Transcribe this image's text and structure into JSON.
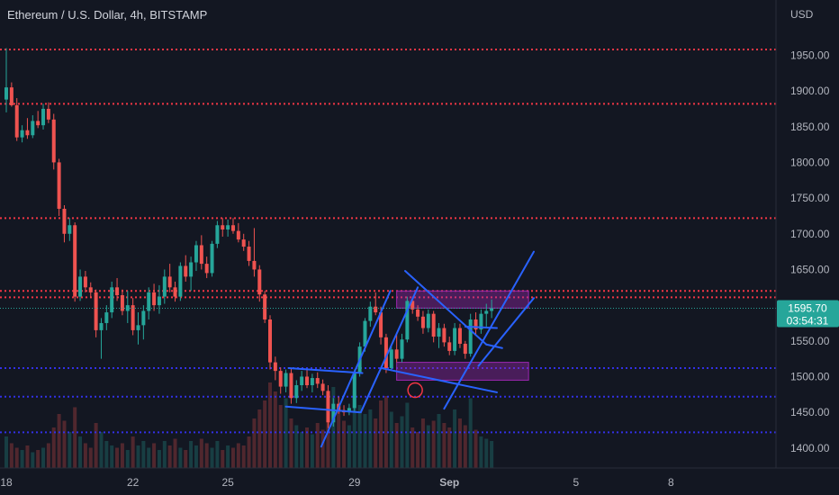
{
  "chart_data": {
    "type": "candlestick",
    "title": "Ethereum / U.S. Dollar, 4h, BITSTAMP",
    "yaxis_unit": "USD",
    "ylim": [
      1370,
      2005
    ],
    "y_ticks": [
      1950,
      1900,
      1850,
      1800,
      1750,
      1700,
      1650,
      1550,
      1500,
      1450,
      1400
    ],
    "y_tick_labels": [
      "1950.00",
      "1900.00",
      "1850.00",
      "1800.00",
      "1750.00",
      "1700.00",
      "1650.00",
      "1550.00",
      "1500.00",
      "1450.00",
      "1400.00"
    ],
    "x_labels": [
      "18",
      "22",
      "25",
      "29",
      "Sep",
      "5",
      "8"
    ],
    "x_label_bars": [
      0,
      24,
      42,
      66,
      84,
      108,
      126
    ],
    "current_price": {
      "label": "1595.70",
      "countdown": "03:54:31",
      "value": 1595.7
    },
    "colors": {
      "up": "#26a69a",
      "down": "#ef5350",
      "background": "#131722",
      "trendline": "#2962ff",
      "resistance": "#f23645",
      "support": "#3330e6",
      "zone": "#9c27b0"
    },
    "candles": [
      {
        "o": 1888,
        "h": 1960,
        "l": 1870,
        "c": 1905
      },
      {
        "o": 1905,
        "h": 1912,
        "l": 1878,
        "c": 1880
      },
      {
        "o": 1880,
        "h": 1890,
        "l": 1830,
        "c": 1835
      },
      {
        "o": 1835,
        "h": 1852,
        "l": 1828,
        "c": 1845
      },
      {
        "o": 1845,
        "h": 1862,
        "l": 1833,
        "c": 1838
      },
      {
        "o": 1838,
        "h": 1866,
        "l": 1834,
        "c": 1858
      },
      {
        "o": 1858,
        "h": 1872,
        "l": 1848,
        "c": 1852
      },
      {
        "o": 1852,
        "h": 1882,
        "l": 1846,
        "c": 1875
      },
      {
        "o": 1875,
        "h": 1884,
        "l": 1855,
        "c": 1860
      },
      {
        "o": 1860,
        "h": 1868,
        "l": 1790,
        "c": 1800
      },
      {
        "o": 1800,
        "h": 1805,
        "l": 1725,
        "c": 1735
      },
      {
        "o": 1735,
        "h": 1740,
        "l": 1688,
        "c": 1700
      },
      {
        "o": 1700,
        "h": 1722,
        "l": 1690,
        "c": 1712
      },
      {
        "o": 1712,
        "h": 1716,
        "l": 1605,
        "c": 1612
      },
      {
        "o": 1612,
        "h": 1650,
        "l": 1606,
        "c": 1640
      },
      {
        "o": 1640,
        "h": 1648,
        "l": 1618,
        "c": 1625
      },
      {
        "o": 1625,
        "h": 1632,
        "l": 1610,
        "c": 1618
      },
      {
        "o": 1618,
        "h": 1622,
        "l": 1555,
        "c": 1565
      },
      {
        "o": 1565,
        "h": 1582,
        "l": 1525,
        "c": 1575
      },
      {
        "o": 1575,
        "h": 1600,
        "l": 1565,
        "c": 1590
      },
      {
        "o": 1590,
        "h": 1633,
        "l": 1582,
        "c": 1625
      },
      {
        "o": 1625,
        "h": 1638,
        "l": 1606,
        "c": 1614
      },
      {
        "o": 1614,
        "h": 1622,
        "l": 1586,
        "c": 1592
      },
      {
        "o": 1592,
        "h": 1620,
        "l": 1575,
        "c": 1600
      },
      {
        "o": 1600,
        "h": 1610,
        "l": 1558,
        "c": 1565
      },
      {
        "o": 1565,
        "h": 1590,
        "l": 1545,
        "c": 1572
      },
      {
        "o": 1572,
        "h": 1600,
        "l": 1552,
        "c": 1592
      },
      {
        "o": 1592,
        "h": 1625,
        "l": 1580,
        "c": 1618
      },
      {
        "o": 1618,
        "h": 1630,
        "l": 1592,
        "c": 1600
      },
      {
        "o": 1600,
        "h": 1628,
        "l": 1588,
        "c": 1612
      },
      {
        "o": 1612,
        "h": 1650,
        "l": 1602,
        "c": 1640
      },
      {
        "o": 1640,
        "h": 1658,
        "l": 1618,
        "c": 1625
      },
      {
        "o": 1625,
        "h": 1633,
        "l": 1605,
        "c": 1612
      },
      {
        "o": 1612,
        "h": 1660,
        "l": 1606,
        "c": 1655
      },
      {
        "o": 1655,
        "h": 1670,
        "l": 1633,
        "c": 1640
      },
      {
        "o": 1640,
        "h": 1668,
        "l": 1620,
        "c": 1660
      },
      {
        "o": 1660,
        "h": 1690,
        "l": 1648,
        "c": 1684
      },
      {
        "o": 1684,
        "h": 1698,
        "l": 1650,
        "c": 1658
      },
      {
        "o": 1658,
        "h": 1668,
        "l": 1638,
        "c": 1645
      },
      {
        "o": 1645,
        "h": 1690,
        "l": 1640,
        "c": 1686
      },
      {
        "o": 1686,
        "h": 1718,
        "l": 1680,
        "c": 1712
      },
      {
        "o": 1712,
        "h": 1722,
        "l": 1696,
        "c": 1706
      },
      {
        "o": 1706,
        "h": 1720,
        "l": 1696,
        "c": 1712
      },
      {
        "o": 1712,
        "h": 1722,
        "l": 1700,
        "c": 1704
      },
      {
        "o": 1704,
        "h": 1715,
        "l": 1688,
        "c": 1692
      },
      {
        "o": 1692,
        "h": 1700,
        "l": 1676,
        "c": 1682
      },
      {
        "o": 1682,
        "h": 1690,
        "l": 1655,
        "c": 1662
      },
      {
        "o": 1662,
        "h": 1708,
        "l": 1640,
        "c": 1650
      },
      {
        "o": 1650,
        "h": 1656,
        "l": 1605,
        "c": 1615
      },
      {
        "o": 1615,
        "h": 1620,
        "l": 1575,
        "c": 1580
      },
      {
        "o": 1580,
        "h": 1586,
        "l": 1510,
        "c": 1520
      },
      {
        "o": 1520,
        "h": 1528,
        "l": 1495,
        "c": 1508
      },
      {
        "o": 1508,
        "h": 1513,
        "l": 1476,
        "c": 1486
      },
      {
        "o": 1486,
        "h": 1510,
        "l": 1478,
        "c": 1505
      },
      {
        "o": 1505,
        "h": 1512,
        "l": 1462,
        "c": 1470
      },
      {
        "o": 1470,
        "h": 1495,
        "l": 1463,
        "c": 1488
      },
      {
        "o": 1488,
        "h": 1508,
        "l": 1480,
        "c": 1500
      },
      {
        "o": 1500,
        "h": 1510,
        "l": 1484,
        "c": 1488
      },
      {
        "o": 1488,
        "h": 1504,
        "l": 1478,
        "c": 1498
      },
      {
        "o": 1498,
        "h": 1506,
        "l": 1484,
        "c": 1490
      },
      {
        "o": 1490,
        "h": 1496,
        "l": 1474,
        "c": 1480
      },
      {
        "o": 1480,
        "h": 1488,
        "l": 1428,
        "c": 1436
      },
      {
        "o": 1436,
        "h": 1470,
        "l": 1430,
        "c": 1462
      },
      {
        "o": 1462,
        "h": 1472,
        "l": 1448,
        "c": 1453
      },
      {
        "o": 1453,
        "h": 1460,
        "l": 1445,
        "c": 1450
      },
      {
        "o": 1450,
        "h": 1462,
        "l": 1446,
        "c": 1456
      },
      {
        "o": 1456,
        "h": 1510,
        "l": 1450,
        "c": 1506
      },
      {
        "o": 1506,
        "h": 1548,
        "l": 1500,
        "c": 1542
      },
      {
        "o": 1542,
        "h": 1582,
        "l": 1535,
        "c": 1578
      },
      {
        "o": 1578,
        "h": 1605,
        "l": 1570,
        "c": 1598
      },
      {
        "o": 1598,
        "h": 1618,
        "l": 1586,
        "c": 1590
      },
      {
        "o": 1590,
        "h": 1598,
        "l": 1545,
        "c": 1555
      },
      {
        "o": 1555,
        "h": 1560,
        "l": 1505,
        "c": 1512
      },
      {
        "o": 1512,
        "h": 1545,
        "l": 1508,
        "c": 1538
      },
      {
        "o": 1538,
        "h": 1560,
        "l": 1520,
        "c": 1525
      },
      {
        "o": 1525,
        "h": 1560,
        "l": 1520,
        "c": 1552
      },
      {
        "o": 1552,
        "h": 1612,
        "l": 1548,
        "c": 1606
      },
      {
        "o": 1606,
        "h": 1612,
        "l": 1588,
        "c": 1594
      },
      {
        "o": 1594,
        "h": 1600,
        "l": 1578,
        "c": 1584
      },
      {
        "o": 1584,
        "h": 1592,
        "l": 1560,
        "c": 1568
      },
      {
        "o": 1568,
        "h": 1594,
        "l": 1562,
        "c": 1588
      },
      {
        "o": 1588,
        "h": 1592,
        "l": 1548,
        "c": 1556
      },
      {
        "o": 1556,
        "h": 1575,
        "l": 1540,
        "c": 1568
      },
      {
        "o": 1568,
        "h": 1574,
        "l": 1542,
        "c": 1548
      },
      {
        "o": 1548,
        "h": 1556,
        "l": 1530,
        "c": 1536
      },
      {
        "o": 1536,
        "h": 1575,
        "l": 1530,
        "c": 1568
      },
      {
        "o": 1568,
        "h": 1574,
        "l": 1540,
        "c": 1546
      },
      {
        "o": 1546,
        "h": 1550,
        "l": 1525,
        "c": 1532
      },
      {
        "o": 1532,
        "h": 1588,
        "l": 1528,
        "c": 1580
      },
      {
        "o": 1580,
        "h": 1590,
        "l": 1558,
        "c": 1566
      },
      {
        "o": 1566,
        "h": 1594,
        "l": 1560,
        "c": 1588
      },
      {
        "o": 1588,
        "h": 1602,
        "l": 1570,
        "c": 1592
      },
      {
        "o": 1592,
        "h": 1608,
        "l": 1582,
        "c": 1595.7
      }
    ],
    "volumes": [
      14,
      11,
      9,
      8,
      10,
      7,
      8,
      9,
      11,
      18,
      24,
      21,
      16,
      27,
      14,
      11,
      9,
      20,
      16,
      12,
      10,
      9,
      11,
      8,
      14,
      10,
      12,
      9,
      11,
      8,
      12,
      10,
      13,
      9,
      8,
      12,
      10,
      13,
      11,
      9,
      12,
      8,
      10,
      9,
      11,
      10,
      14,
      22,
      26,
      30,
      38,
      34,
      28,
      31,
      22,
      19,
      16,
      18,
      15,
      20,
      17,
      33,
      36,
      28,
      21,
      19,
      34,
      28,
      24,
      26,
      22,
      30,
      32,
      25,
      20,
      23,
      29,
      18,
      16,
      22,
      19,
      21,
      24,
      20,
      18,
      26,
      22,
      19,
      31,
      17,
      14,
      13,
      12
    ],
    "horizontal_levels": [
      {
        "price": 1958,
        "kind": "resistance"
      },
      {
        "price": 1882,
        "kind": "resistance"
      },
      {
        "price": 1722,
        "kind": "resistance"
      },
      {
        "price": 1620,
        "kind": "resistance"
      },
      {
        "price": 1611,
        "kind": "resistance"
      },
      {
        "price": 1512,
        "kind": "support"
      },
      {
        "price": 1472,
        "kind": "support"
      },
      {
        "price": 1422,
        "kind": "support"
      }
    ],
    "zones": [
      {
        "from_bar": 74,
        "to_bar": 99,
        "low": 1596,
        "high": 1620
      },
      {
        "from_bar": 74,
        "to_bar": 99,
        "low": 1495,
        "high": 1520
      }
    ],
    "trendlines": [
      {
        "x1": 53.5,
        "y1": 1512,
        "x2": 67.5,
        "y2": 1505
      },
      {
        "x1": 53.0,
        "y1": 1458,
        "x2": 67.0,
        "y2": 1450
      },
      {
        "x1": 59.7,
        "y1": 1402,
        "x2": 72.8,
        "y2": 1620
      },
      {
        "x1": 67.2,
        "y1": 1450,
        "x2": 78.0,
        "y2": 1625
      },
      {
        "x1": 75.6,
        "y1": 1648,
        "x2": 91.0,
        "y2": 1545
      },
      {
        "x1": 71.0,
        "y1": 1512,
        "x2": 93.0,
        "y2": 1478
      },
      {
        "x1": 89.5,
        "y1": 1515,
        "x2": 100.0,
        "y2": 1610
      },
      {
        "x1": 87.0,
        "y1": 1570,
        "x2": 93.0,
        "y2": 1568
      },
      {
        "x1": 91.0,
        "y1": 1545,
        "x2": 94.0,
        "y2": 1540
      },
      {
        "x1": 83.0,
        "y1": 1455,
        "x2": 100.0,
        "y2": 1675
      }
    ],
    "marker": {
      "bar": 77.5,
      "price": 1481
    }
  }
}
